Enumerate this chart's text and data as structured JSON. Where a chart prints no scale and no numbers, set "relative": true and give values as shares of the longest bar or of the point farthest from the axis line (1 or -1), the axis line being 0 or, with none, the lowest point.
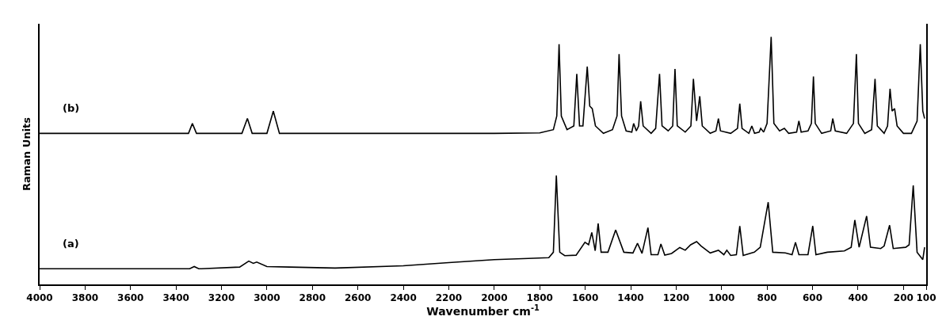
{
  "chart_data": {
    "type": "line",
    "xlabel": "Wavenumber cm$^{-1}$",
    "ylabel": "Raman Units",
    "relative": true,
    "grid": false,
    "legend": false,
    "marker": "none",
    "line_style": "solid",
    "xlim": [
      4000,
      100
    ],
    "xticks": [
      4000,
      3800,
      3600,
      3400,
      3200,
      3000,
      2800,
      2600,
      2400,
      2200,
      2000,
      1800,
      1600,
      1400,
      1200,
      1000,
      800,
      600,
      400,
      200,
      100
    ],
    "series": [
      {
        "name": "(b)",
        "color": "#000000",
        "x": [
          4000,
          3345,
          3328,
          3310,
          3110,
          3086,
          3065,
          3000,
          2972,
          2945,
          2000,
          1800,
          1740,
          1725,
          1715,
          1705,
          1680,
          1650,
          1637,
          1625,
          1610,
          1591,
          1580,
          1569,
          1555,
          1520,
          1480,
          1460,
          1451,
          1440,
          1420,
          1395,
          1387,
          1375,
          1365,
          1356,
          1345,
          1310,
          1290,
          1273,
          1262,
          1235,
          1215,
          1205,
          1195,
          1160,
          1135,
          1124,
          1110,
          1096,
          1085,
          1050,
          1025,
          1014,
          1005,
          960,
          930,
          920,
          910,
          880,
          867,
          855,
          835,
          828,
          815,
          800,
          782,
          770,
          745,
          724,
          705,
          670,
          660,
          650,
          620,
          605,
          596,
          588,
          560,
          520,
          511,
          500,
          450,
          420,
          407,
          398,
          370,
          340,
          325,
          315,
          285,
          270,
          259,
          250,
          239,
          228,
          200,
          165,
          140,
          126,
          115,
          107
        ],
        "values": [
          0.61,
          0.61,
          0.65,
          0.61,
          0.61,
          0.67,
          0.61,
          0.61,
          0.7,
          0.61,
          0.61,
          0.612,
          0.625,
          0.68,
          0.97,
          0.68,
          0.625,
          0.64,
          0.85,
          0.64,
          0.64,
          0.88,
          0.72,
          0.71,
          0.64,
          0.61,
          0.625,
          0.68,
          0.93,
          0.68,
          0.62,
          0.615,
          0.65,
          0.62,
          0.64,
          0.74,
          0.64,
          0.61,
          0.63,
          0.85,
          0.64,
          0.62,
          0.64,
          0.87,
          0.64,
          0.615,
          0.64,
          0.83,
          0.66,
          0.76,
          0.64,
          0.61,
          0.62,
          0.67,
          0.62,
          0.61,
          0.63,
          0.73,
          0.63,
          0.61,
          0.64,
          0.61,
          0.615,
          0.63,
          0.615,
          0.65,
          1.0,
          0.65,
          0.62,
          0.63,
          0.61,
          0.615,
          0.66,
          0.615,
          0.62,
          0.65,
          0.84,
          0.65,
          0.61,
          0.62,
          0.67,
          0.62,
          0.61,
          0.65,
          0.93,
          0.65,
          0.61,
          0.625,
          0.83,
          0.64,
          0.61,
          0.64,
          0.79,
          0.7,
          0.71,
          0.64,
          0.61,
          0.61,
          0.66,
          0.97,
          0.7,
          0.67
        ]
      },
      {
        "name": "(a)",
        "color": "#000000",
        "x": [
          4000,
          3500,
          3340,
          3320,
          3300,
          3120,
          3080,
          3060,
          3045,
          3000,
          2900,
          2700,
          2400,
          2200,
          2000,
          1850,
          1760,
          1740,
          1727,
          1712,
          1690,
          1640,
          1601,
          1585,
          1571,
          1556,
          1543,
          1530,
          1500,
          1466,
          1430,
          1390,
          1370,
          1350,
          1324,
          1310,
          1280,
          1267,
          1250,
          1220,
          1184,
          1160,
          1136,
          1110,
          1090,
          1050,
          1014,
          990,
          977,
          960,
          935,
          920,
          905,
          856,
          830,
          795,
          775,
          720,
          690,
          675,
          660,
          620,
          599,
          585,
          535,
          460,
          430,
          414,
          395,
          362,
          345,
          300,
          285,
          261,
          245,
          190,
          175,
          157,
          140,
          115,
          107
        ],
        "values": [
          0.063,
          0.063,
          0.063,
          0.072,
          0.063,
          0.07,
          0.094,
          0.085,
          0.09,
          0.072,
          0.07,
          0.066,
          0.075,
          0.088,
          0.1,
          0.105,
          0.108,
          0.13,
          0.44,
          0.13,
          0.116,
          0.118,
          0.17,
          0.16,
          0.21,
          0.136,
          0.246,
          0.13,
          0.13,
          0.22,
          0.13,
          0.127,
          0.166,
          0.125,
          0.229,
          0.12,
          0.12,
          0.163,
          0.118,
          0.125,
          0.149,
          0.138,
          0.16,
          0.173,
          0.155,
          0.127,
          0.138,
          0.12,
          0.138,
          0.117,
          0.12,
          0.236,
          0.117,
          0.13,
          0.15,
          0.332,
          0.13,
          0.127,
          0.12,
          0.17,
          0.12,
          0.12,
          0.236,
          0.12,
          0.13,
          0.135,
          0.15,
          0.26,
          0.15,
          0.276,
          0.15,
          0.145,
          0.155,
          0.239,
          0.145,
          0.15,
          0.16,
          0.4,
          0.13,
          0.1,
          0.15
        ]
      }
    ]
  }
}
